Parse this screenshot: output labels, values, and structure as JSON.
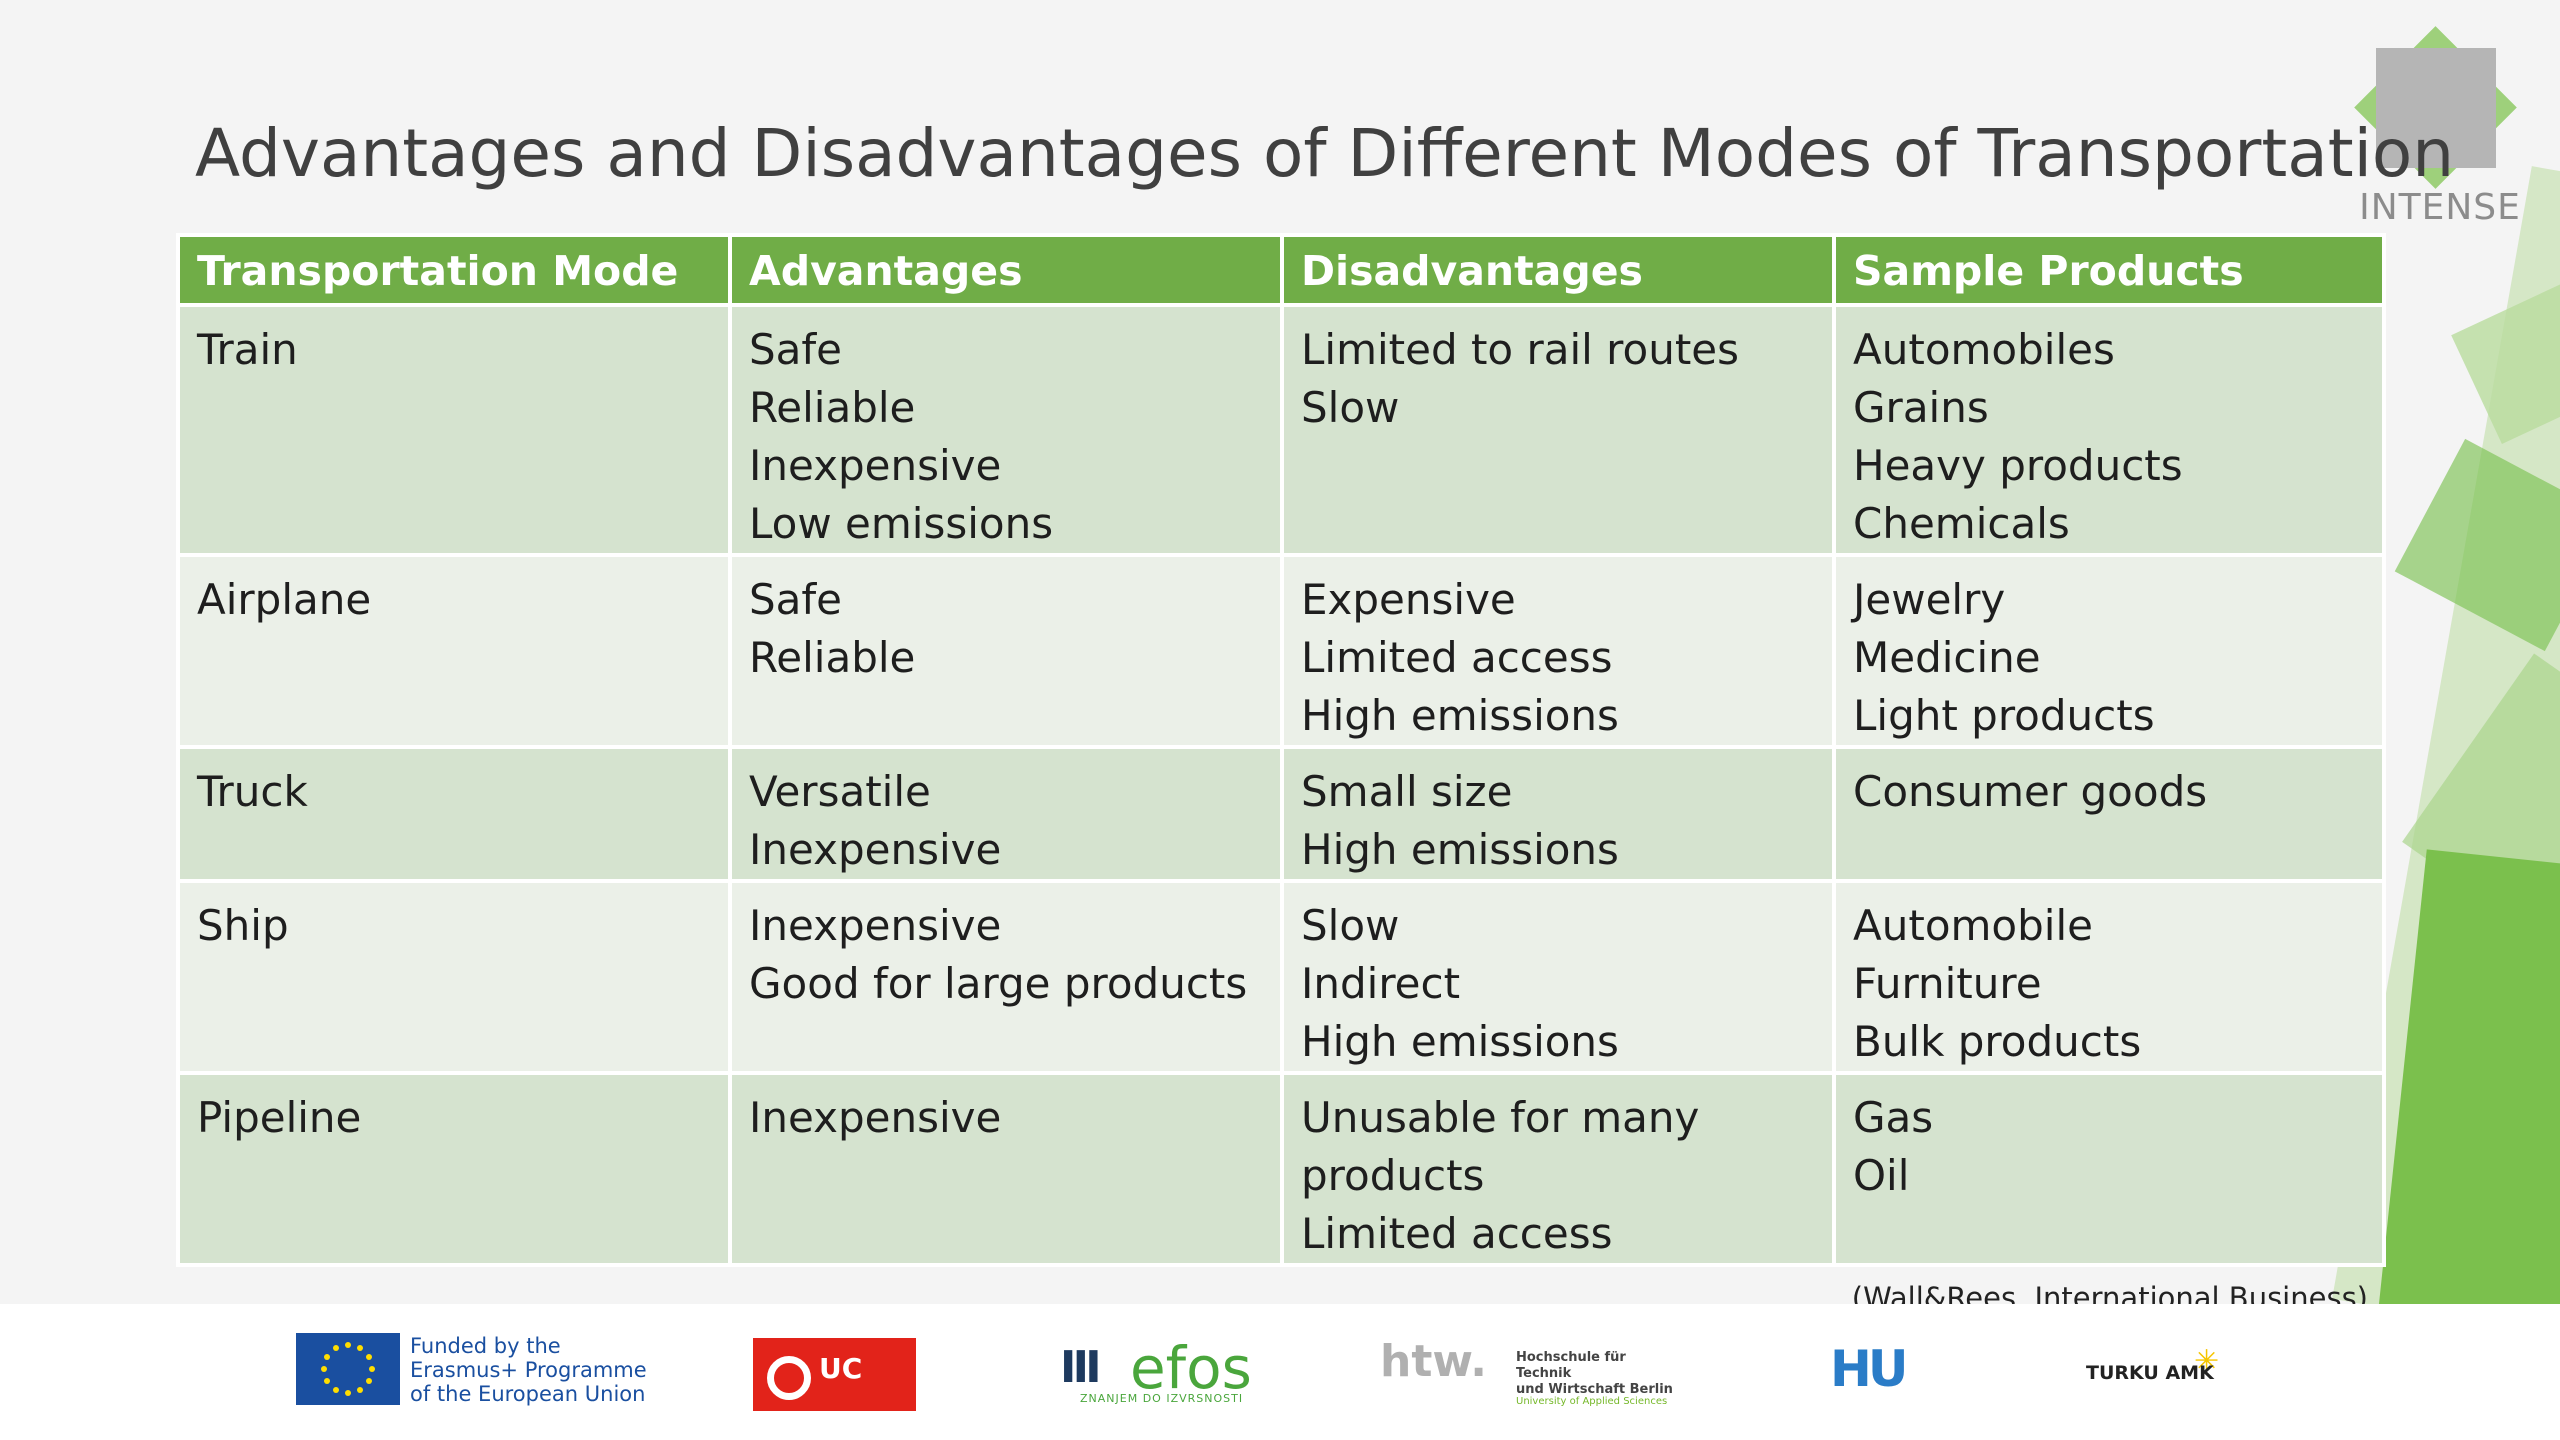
{
  "title": "Advantages and Disadvantages of Different Modes of Transportation",
  "logo_text": "INTENSE",
  "table": {
    "headers": [
      "Transportation Mode",
      "Advantages",
      "Disadvantages",
      "Sample Products"
    ],
    "rows": [
      {
        "mode": "Train",
        "advantages": [
          "Safe",
          "Reliable",
          "Inexpensive",
          "Low emissions"
        ],
        "disadvantages": [
          "Limited to rail routes",
          "Slow"
        ],
        "products": [
          "Automobiles",
          "Grains",
          "Heavy products",
          "Chemicals"
        ]
      },
      {
        "mode": "Airplane",
        "advantages": [
          "Safe",
          "Reliable"
        ],
        "disadvantages": [
          "Expensive",
          "Limited access",
          "High emissions"
        ],
        "products": [
          "Jewelry",
          "Medicine",
          "Light products"
        ]
      },
      {
        "mode": "Truck",
        "advantages": [
          "Versatile",
          "Inexpensive"
        ],
        "disadvantages": [
          "Small size",
          "High emissions"
        ],
        "products": [
          "Consumer goods"
        ]
      },
      {
        "mode": "Ship",
        "advantages": [
          "Inexpensive",
          "Good for large products"
        ],
        "disadvantages": [
          "Slow",
          "Indirect",
          "High emissions"
        ],
        "products": [
          "Automobile",
          "Furniture",
          "Bulk products"
        ]
      },
      {
        "mode": "Pipeline",
        "advantages": [
          "Inexpensive"
        ],
        "disadvantages": [
          "Unusable for many",
          "products",
          "Limited access"
        ],
        "products": [
          "Gas",
          "Oil"
        ]
      }
    ]
  },
  "citation": "(Wall&Rees, International Business)",
  "footer": {
    "eu_lines": [
      "Funded by the",
      "Erasmus+ Programme",
      "of the European Union"
    ],
    "ucll": "UC",
    "efos": "efos",
    "efos_sub": "ZNANJEM DO IZVRSNOSTI",
    "htw": "htw.",
    "htw_lines": [
      "Hochschule für Technik",
      "und Wirtschaft Berlin"
    ],
    "htw_tag": "University of Applied Sciences",
    "hu": "HU",
    "turku": "TURKU AMK"
  },
  "colors": {
    "header_green": "#70ad47",
    "row_odd": "#d5e3cf",
    "row_even": "#ebf0e8",
    "title_gray": "#404040"
  }
}
